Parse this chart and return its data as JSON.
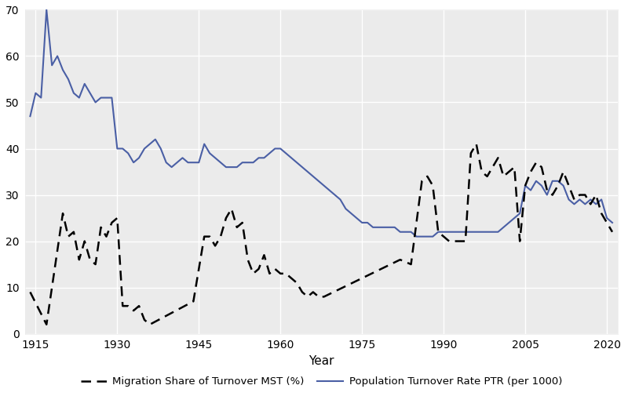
{
  "ptr_years": [
    1914,
    1915,
    1916,
    1917,
    1918,
    1919,
    1920,
    1921,
    1922,
    1923,
    1924,
    1925,
    1926,
    1927,
    1928,
    1929,
    1930,
    1931,
    1932,
    1933,
    1934,
    1935,
    1936,
    1937,
    1938,
    1939,
    1940,
    1941,
    1942,
    1943,
    1944,
    1945,
    1946,
    1947,
    1948,
    1949,
    1950,
    1951,
    1952,
    1953,
    1954,
    1955,
    1956,
    1957,
    1958,
    1959,
    1960,
    1961,
    1962,
    1963,
    1964,
    1965,
    1966,
    1967,
    1968,
    1969,
    1970,
    1971,
    1972,
    1973,
    1974,
    1975,
    1976,
    1977,
    1978,
    1979,
    1980,
    1981,
    1982,
    1983,
    1984,
    1985,
    1986,
    1987,
    1988,
    1989,
    1990,
    1991,
    1992,
    1993,
    1994,
    1995,
    1996,
    1997,
    1998,
    1999,
    2000,
    2001,
    2002,
    2003,
    2004,
    2005,
    2006,
    2007,
    2008,
    2009,
    2010,
    2011,
    2012,
    2013,
    2014,
    2015,
    2016,
    2017,
    2018,
    2019,
    2020,
    2021
  ],
  "ptr_values": [
    47,
    52,
    51,
    70,
    58,
    60,
    57,
    55,
    52,
    51,
    54,
    52,
    50,
    51,
    51,
    51,
    40,
    40,
    39,
    37,
    38,
    40,
    41,
    42,
    40,
    37,
    36,
    37,
    38,
    37,
    37,
    37,
    41,
    39,
    38,
    37,
    36,
    36,
    36,
    37,
    37,
    37,
    38,
    38,
    39,
    40,
    40,
    39,
    38,
    37,
    36,
    35,
    34,
    33,
    32,
    31,
    30,
    29,
    27,
    26,
    25,
    24,
    24,
    23,
    23,
    23,
    23,
    23,
    22,
    22,
    22,
    21,
    21,
    21,
    21,
    22,
    22,
    22,
    22,
    22,
    22,
    22,
    22,
    22,
    22,
    22,
    22,
    23,
    24,
    25,
    26,
    32,
    31,
    33,
    32,
    30,
    33,
    33,
    32,
    29,
    28,
    29,
    28,
    29,
    28,
    29,
    25,
    24
  ],
  "mst_years": [
    1914,
    1917,
    1920,
    1921,
    1922,
    1923,
    1924,
    1925,
    1926,
    1927,
    1928,
    1929,
    1930,
    1931,
    1932,
    1933,
    1934,
    1935,
    1936,
    1944,
    1946,
    1947,
    1948,
    1949,
    1950,
    1951,
    1952,
    1953,
    1954,
    1955,
    1956,
    1957,
    1958,
    1959,
    1960,
    1961,
    1962,
    1963,
    1964,
    1965,
    1966,
    1967,
    1968,
    1982,
    1984,
    1986,
    1987,
    1988,
    1989,
    1990,
    1991,
    1992,
    1993,
    1994,
    1995,
    1996,
    1997,
    1998,
    1999,
    2000,
    2001,
    2002,
    2003,
    2004,
    2005,
    2006,
    2007,
    2008,
    2009,
    2010,
    2011,
    2012,
    2013,
    2014,
    2015,
    2016,
    2017,
    2018,
    2019,
    2020,
    2021
  ],
  "mst_values": [
    9,
    2,
    26,
    21,
    22,
    16,
    20,
    16,
    15,
    23,
    21,
    24,
    25,
    6,
    6,
    5,
    6,
    3,
    2,
    7,
    21,
    21,
    19,
    21,
    25,
    27,
    23,
    24,
    16,
    13,
    14,
    17,
    13,
    14,
    13,
    13,
    12,
    11,
    9,
    8,
    9,
    8,
    8,
    16,
    15,
    33,
    34,
    32,
    22,
    21,
    20,
    20,
    20,
    20,
    39,
    41,
    35,
    34,
    36,
    38,
    34,
    35,
    36,
    20,
    32,
    35,
    37,
    36,
    31,
    30,
    32,
    35,
    32,
    29,
    30,
    30,
    28,
    30,
    26,
    24,
    22
  ],
  "ptr_color": "#4a5fa5",
  "mst_color": "#000000",
  "panel_bg": "#ebebeb",
  "fig_bg": "#ffffff",
  "grid_color": "#ffffff",
  "xlabel": "Year",
  "ylim": [
    0,
    70
  ],
  "xlim": [
    1913,
    2022
  ],
  "yticks": [
    0,
    10,
    20,
    30,
    40,
    50,
    60,
    70
  ],
  "xticks": [
    1915,
    1930,
    1945,
    1960,
    1975,
    1990,
    2005,
    2020
  ],
  "legend_mst": "Migration Share of Turnover MST (%)",
  "legend_ptr": "Population Turnover Rate PTR (per 1000)",
  "tick_labelsize": 10,
  "xlabel_fontsize": 11,
  "legend_fontsize": 9.5,
  "linewidth_ptr": 1.5,
  "linewidth_mst": 1.8
}
